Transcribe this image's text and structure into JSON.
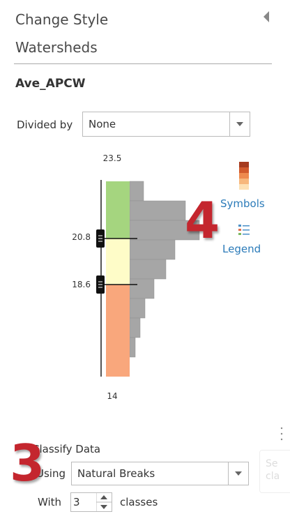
{
  "header": {
    "title": "Change Style",
    "layer": "Watersheds"
  },
  "field": "Ave_APCW",
  "divided_by": {
    "label": "Divided by",
    "value": "None"
  },
  "classifier": {
    "max": "23.5",
    "breaks": [
      "20.8",
      "18.6"
    ],
    "min": "14"
  },
  "links": {
    "symbols": "Symbols",
    "legend": "Legend"
  },
  "classify": {
    "label": "Classify Data",
    "using_label": "Using",
    "method": "Natural Breaks",
    "with_label": "With",
    "classes": "3",
    "classes_label": "classes"
  },
  "annotations": [
    "4",
    "3"
  ],
  "side_hint": [
    "Se",
    "cla"
  ]
}
